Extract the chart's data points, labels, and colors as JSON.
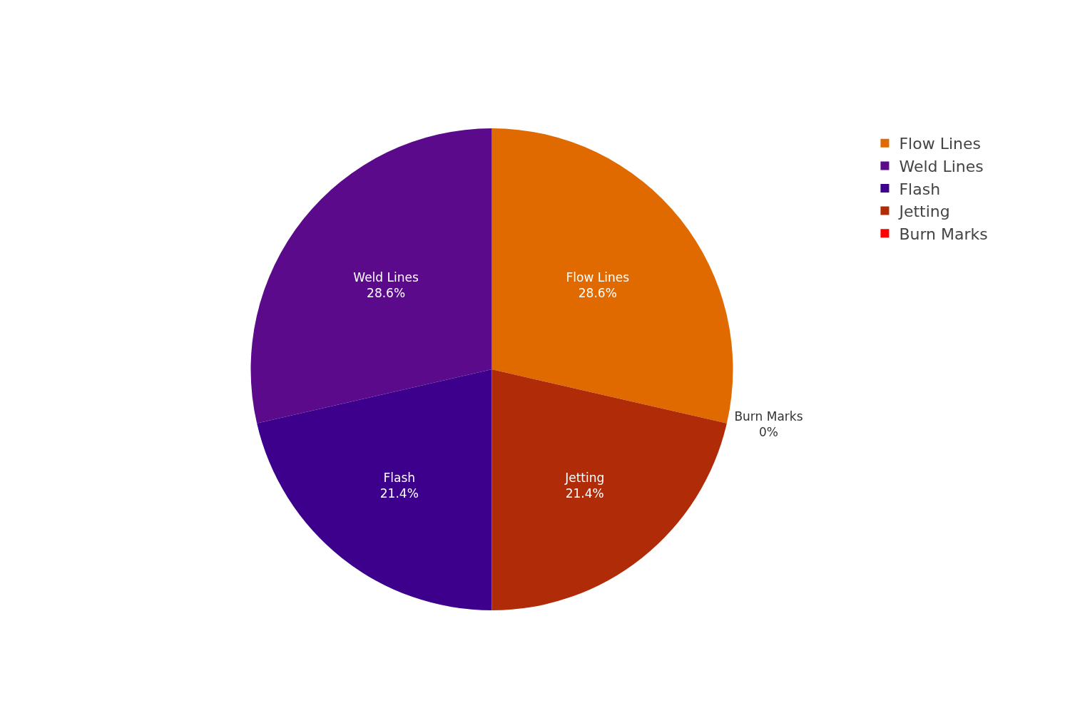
{
  "chart_data": {
    "type": "pie",
    "categories": [
      "Flow Lines",
      "Weld Lines",
      "Flash",
      "Jetting",
      "Burn Marks"
    ],
    "values": [
      28.6,
      28.6,
      21.4,
      21.4,
      0
    ],
    "value_labels": [
      "28.6%",
      "28.6%",
      "21.4%",
      "21.4%",
      "0%"
    ],
    "colors": [
      "#e06a00",
      "#5c0a8c",
      "#3c008c",
      "#b02c08",
      "#ff0000"
    ],
    "legend": "top right"
  }
}
